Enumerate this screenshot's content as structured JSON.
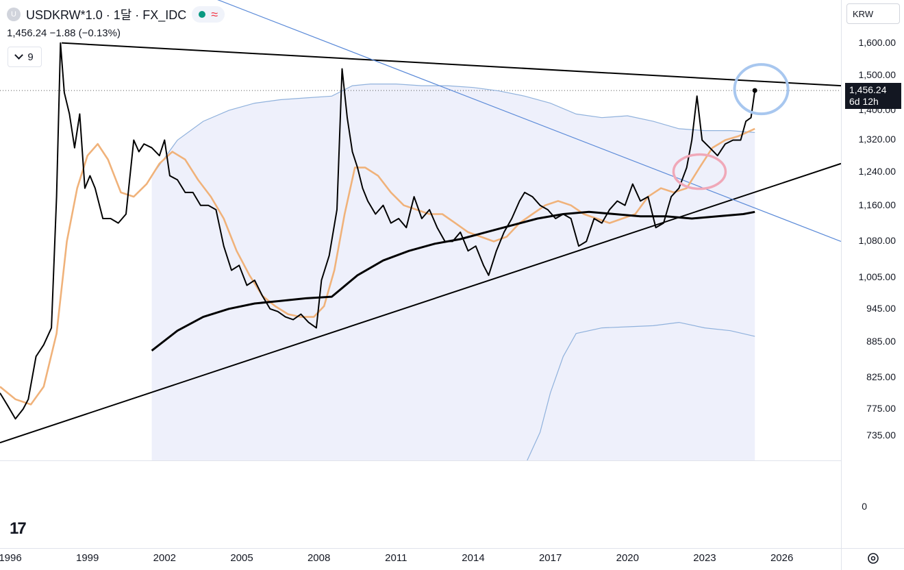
{
  "header": {
    "symbol_badge": "U",
    "title": "USDKRW*1.0 · 1달 · FX_IDC",
    "status": "≈",
    "price_change": "1,456.24  −1.88 (−0.13%)",
    "indicator_count": "9"
  },
  "axis": {
    "currency": "KRW",
    "last_price": "1,456.24",
    "countdown": "6d 12h"
  },
  "colors": {
    "price": "#000000",
    "ma_orange": "#f0b27a",
    "ma_long": "#000000",
    "band": "#8fb1dc",
    "band_fill": "#eef0fb",
    "trend_blue": "#5b8ad8",
    "circle_blue": "#a8c7ef",
    "circle_red": "#f0a8b8"
  },
  "icons": [
    "tradingview-logo-icon",
    "settings-icon",
    "chevron-down-icon"
  ],
  "chart_data": {
    "type": "line",
    "y_scale": "log",
    "ylim": [
      700,
      1650
    ],
    "y_ticks": [
      "1,600.00",
      "1,500.00",
      "1,400.00",
      "1,320.00",
      "1,240.00",
      "1,160.00",
      "1,080.00",
      "1,005.00",
      "945.00",
      "885.00",
      "825.00",
      "775.00",
      "735.00"
    ],
    "secondary_pane_ticks": [
      "0"
    ],
    "x_ticks": [
      "1996",
      "1999",
      "2002",
      "2005",
      "2008",
      "2011",
      "2014",
      "2017",
      "2020",
      "2023",
      "2026"
    ],
    "xlim": [
      1995.6,
      2028.3
    ],
    "series": [
      {
        "key": "price",
        "x": [
          1995.6,
          1995.9,
          1996.2,
          1996.5,
          1996.7,
          1997.0,
          1997.3,
          1997.6,
          1997.8,
          1997.95,
          1998.1,
          1998.3,
          1998.5,
          1998.7,
          1998.9,
          1999.1,
          1999.3,
          1999.6,
          1999.9,
          2000.2,
          2000.5,
          2000.8,
          2001.0,
          2001.2,
          2001.5,
          2001.8,
          2002.0,
          2002.2,
          2002.5,
          2002.8,
          2003.1,
          2003.4,
          2003.7,
          2004.0,
          2004.3,
          2004.6,
          2004.9,
          2005.2,
          2005.5,
          2005.8,
          2006.1,
          2006.4,
          2006.7,
          2007.0,
          2007.3,
          2007.6,
          2007.9,
          2008.1,
          2008.4,
          2008.7,
          2008.9,
          2009.1,
          2009.3,
          2009.5,
          2009.7,
          2009.9,
          2010.2,
          2010.5,
          2010.8,
          2011.1,
          2011.4,
          2011.7,
          2012.0,
          2012.3,
          2012.6,
          2012.9,
          2013.2,
          2013.5,
          2013.8,
          2014.1,
          2014.4,
          2014.6,
          2014.9,
          2015.2,
          2015.5,
          2015.8,
          2016.0,
          2016.3,
          2016.6,
          2016.9,
          2017.2,
          2017.5,
          2017.8,
          2018.1,
          2018.4,
          2018.7,
          2019.0,
          2019.3,
          2019.6,
          2019.9,
          2020.2,
          2020.5,
          2020.8,
          2021.1,
          2021.4,
          2021.7,
          2022.0,
          2022.3,
          2022.5,
          2022.7,
          2022.9,
          2023.2,
          2023.5,
          2023.8,
          2024.1,
          2024.4,
          2024.6,
          2024.8,
          2024.95
        ],
        "values": [
          800,
          780,
          760,
          775,
          790,
          860,
          880,
          910,
          1180,
          1600,
          1450,
          1390,
          1300,
          1390,
          1200,
          1230,
          1200,
          1130,
          1130,
          1120,
          1140,
          1320,
          1290,
          1310,
          1300,
          1280,
          1320,
          1230,
          1220,
          1190,
          1190,
          1160,
          1160,
          1150,
          1070,
          1020,
          1030,
          990,
          1000,
          970,
          945,
          940,
          930,
          925,
          935,
          920,
          910,
          1000,
          1050,
          1150,
          1520,
          1380,
          1290,
          1250,
          1200,
          1170,
          1140,
          1160,
          1120,
          1130,
          1110,
          1180,
          1130,
          1150,
          1110,
          1080,
          1080,
          1100,
          1060,
          1070,
          1030,
          1010,
          1060,
          1100,
          1130,
          1170,
          1190,
          1180,
          1160,
          1150,
          1130,
          1140,
          1130,
          1070,
          1080,
          1130,
          1120,
          1150,
          1170,
          1160,
          1210,
          1170,
          1180,
          1110,
          1120,
          1180,
          1200,
          1250,
          1320,
          1440,
          1320,
          1300,
          1280,
          1310,
          1320,
          1320,
          1370,
          1380,
          1456.24
        ]
      },
      {
        "key": "ma_orange",
        "x": [
          1995.6,
          1996.2,
          1996.8,
          1997.3,
          1997.8,
          1998.2,
          1998.6,
          1999.0,
          1999.4,
          1999.8,
          2000.3,
          2000.8,
          2001.3,
          2001.8,
          2002.3,
          2002.8,
          2003.3,
          2003.8,
          2004.3,
          2004.8,
          2005.3,
          2005.8,
          2006.3,
          2006.8,
          2007.3,
          2007.8,
          2008.2,
          2008.6,
          2009.0,
          2009.4,
          2009.8,
          2010.3,
          2010.8,
          2011.3,
          2011.8,
          2012.3,
          2012.8,
          2013.3,
          2013.8,
          2014.3,
          2014.8,
          2015.3,
          2015.8,
          2016.3,
          2016.8,
          2017.3,
          2017.8,
          2018.3,
          2018.8,
          2019.3,
          2019.8,
          2020.3,
          2020.8,
          2021.3,
          2021.8,
          2022.3,
          2022.8,
          2023.3,
          2023.8,
          2024.3,
          2024.95
        ],
        "values": [
          810,
          790,
          782,
          810,
          900,
          1080,
          1200,
          1280,
          1310,
          1270,
          1190,
          1180,
          1210,
          1260,
          1290,
          1270,
          1220,
          1180,
          1130,
          1060,
          1010,
          970,
          950,
          935,
          930,
          930,
          950,
          1020,
          1140,
          1250,
          1250,
          1230,
          1190,
          1160,
          1150,
          1140,
          1140,
          1120,
          1100,
          1090,
          1080,
          1090,
          1120,
          1140,
          1160,
          1170,
          1160,
          1140,
          1130,
          1120,
          1130,
          1140,
          1180,
          1200,
          1190,
          1200,
          1250,
          1300,
          1320,
          1330,
          1350
        ]
      },
      {
        "key": "ma_long",
        "x": [
          2001.5,
          2002.5,
          2003.5,
          2004.5,
          2005.5,
          2006.5,
          2007.5,
          2008.5,
          2009.5,
          2010.5,
          2011.5,
          2012.5,
          2013.5,
          2014.5,
          2015.5,
          2016.5,
          2017.5,
          2018.5,
          2019.5,
          2020.5,
          2021.5,
          2022.5,
          2023.5,
          2024.5,
          2024.95
        ],
        "values": [
          870,
          905,
          930,
          945,
          955,
          960,
          965,
          968,
          1010,
          1040,
          1060,
          1075,
          1085,
          1100,
          1115,
          1130,
          1140,
          1145,
          1140,
          1135,
          1135,
          1130,
          1135,
          1140,
          1145
        ]
      },
      {
        "key": "band_upper",
        "x": [
          2001.5,
          2002.5,
          2003.5,
          2004.5,
          2005.5,
          2006.5,
          2007.5,
          2008.5,
          2009.3,
          2010.0,
          2011.0,
          2012.0,
          2013.0,
          2014.0,
          2015.0,
          2016.0,
          2017.0,
          2018.0,
          2019.0,
          2020.0,
          2021.0,
          2022.0,
          2023.0,
          2024.0,
          2024.95
        ],
        "values": [
          1230,
          1320,
          1370,
          1400,
          1420,
          1430,
          1435,
          1440,
          1470,
          1475,
          1475,
          1470,
          1470,
          1465,
          1455,
          1440,
          1420,
          1390,
          1380,
          1385,
          1370,
          1350,
          1345,
          1345,
          1340
        ]
      },
      {
        "key": "band_lower",
        "x": [
          2016.1,
          2016.6,
          2017.0,
          2017.5,
          2018.0,
          2019.0,
          2020.0,
          2021.0,
          2022.0,
          2023.0,
          2024.0,
          2024.95
        ],
        "values": [
          700,
          740,
          800,
          860,
          900,
          910,
          912,
          914,
          920,
          910,
          905,
          895
        ]
      }
    ],
    "trendlines": [
      {
        "name": "resistance",
        "x": [
          1998.0,
          2028.3
        ],
        "values": [
          1600,
          1470
        ]
      },
      {
        "name": "support",
        "x": [
          1995.6,
          2028.3
        ],
        "values": [
          725,
          1260
        ]
      },
      {
        "name": "descending-blue",
        "x": [
          1995.6,
          2028.3
        ],
        "values": [
          2060,
          1080
        ]
      }
    ],
    "highlight_circles": [
      {
        "name": "red-circle",
        "x": 2022.8,
        "y": 1240
      },
      {
        "name": "blue-circle",
        "x": 2025.2,
        "y": 1460
      }
    ]
  }
}
